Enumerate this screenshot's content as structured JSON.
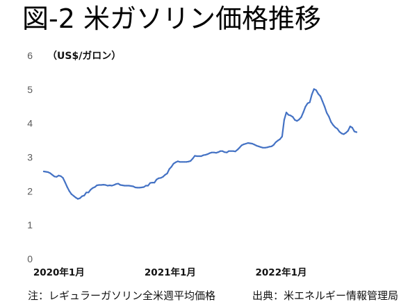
{
  "chart_data": {
    "type": "line",
    "title": "図-2 米ガソリン価格推移",
    "ylabel": "（US$/ガロン）",
    "ylim": [
      0,
      6
    ],
    "yticks": [
      0,
      1,
      2,
      3,
      4,
      5,
      6
    ],
    "xticks": [
      {
        "date": "2020-01",
        "label": "2020年1月"
      },
      {
        "date": "2021-01",
        "label": "2021年1月"
      },
      {
        "date": "2022-01",
        "label": "2022年1月"
      }
    ],
    "grid": false,
    "legend": "none",
    "x": [
      "2020-01-06",
      "2020-01-13",
      "2020-01-20",
      "2020-01-27",
      "2020-02-03",
      "2020-02-10",
      "2020-02-17",
      "2020-02-24",
      "2020-03-02",
      "2020-03-09",
      "2020-03-16",
      "2020-03-23",
      "2020-03-30",
      "2020-04-06",
      "2020-04-13",
      "2020-04-20",
      "2020-04-27",
      "2020-05-04",
      "2020-05-11",
      "2020-05-18",
      "2020-05-25",
      "2020-06-01",
      "2020-06-08",
      "2020-06-15",
      "2020-06-22",
      "2020-06-29",
      "2020-07-06",
      "2020-07-13",
      "2020-07-20",
      "2020-07-27",
      "2020-08-03",
      "2020-08-10",
      "2020-08-17",
      "2020-08-24",
      "2020-08-31",
      "2020-09-07",
      "2020-09-14",
      "2020-09-21",
      "2020-09-28",
      "2020-10-05",
      "2020-10-12",
      "2020-10-19",
      "2020-10-26",
      "2020-11-02",
      "2020-11-09",
      "2020-11-16",
      "2020-11-23",
      "2020-11-30",
      "2020-12-07",
      "2020-12-14",
      "2020-12-21",
      "2020-12-28",
      "2021-01-04",
      "2021-01-11",
      "2021-01-18",
      "2021-01-25",
      "2021-02-01",
      "2021-02-08",
      "2021-02-15",
      "2021-02-22",
      "2021-03-01",
      "2021-03-08",
      "2021-03-15",
      "2021-03-22",
      "2021-03-29",
      "2021-04-05",
      "2021-04-12",
      "2021-04-19",
      "2021-04-26",
      "2021-05-03",
      "2021-05-10",
      "2021-05-17",
      "2021-05-24",
      "2021-05-31",
      "2021-06-07",
      "2021-06-14",
      "2021-06-21",
      "2021-06-28",
      "2021-07-05",
      "2021-07-12",
      "2021-07-19",
      "2021-07-26",
      "2021-08-02",
      "2021-08-09",
      "2021-08-16",
      "2021-08-23",
      "2021-08-30",
      "2021-09-06",
      "2021-09-13",
      "2021-09-20",
      "2021-09-27",
      "2021-10-04",
      "2021-10-11",
      "2021-10-18",
      "2021-10-25",
      "2021-11-01",
      "2021-11-08",
      "2021-11-15",
      "2021-11-22",
      "2021-11-29",
      "2021-12-06",
      "2021-12-13",
      "2021-12-20",
      "2021-12-27",
      "2022-01-03",
      "2022-01-10",
      "2022-01-17",
      "2022-01-24",
      "2022-01-31",
      "2022-02-07",
      "2022-02-14",
      "2022-02-21",
      "2022-02-28",
      "2022-03-07",
      "2022-03-14",
      "2022-03-21",
      "2022-03-28",
      "2022-04-04",
      "2022-04-11",
      "2022-04-18",
      "2022-04-25",
      "2022-05-02",
      "2022-05-09",
      "2022-05-16",
      "2022-05-23",
      "2022-05-30",
      "2022-06-06",
      "2022-06-13",
      "2022-06-20",
      "2022-06-27",
      "2022-07-04",
      "2022-07-11",
      "2022-07-18",
      "2022-07-25",
      "2022-08-01",
      "2022-08-08",
      "2022-08-15",
      "2022-08-22",
      "2022-08-29",
      "2022-09-05",
      "2022-09-12",
      "2022-09-19",
      "2022-09-26",
      "2022-10-03",
      "2022-10-10",
      "2022-10-17",
      "2022-10-24",
      "2022-10-31"
    ],
    "series": [
      {
        "color": "#4472C4",
        "values": [
          2.58,
          2.57,
          2.56,
          2.53,
          2.48,
          2.43,
          2.42,
          2.46,
          2.44,
          2.39,
          2.26,
          2.12,
          2.0,
          1.91,
          1.86,
          1.81,
          1.77,
          1.79,
          1.85,
          1.87,
          1.96,
          1.96,
          2.04,
          2.09,
          2.12,
          2.17,
          2.18,
          2.18,
          2.19,
          2.18,
          2.16,
          2.17,
          2.16,
          2.18,
          2.21,
          2.22,
          2.18,
          2.17,
          2.16,
          2.16,
          2.16,
          2.15,
          2.14,
          2.11,
          2.1,
          2.1,
          2.11,
          2.12,
          2.16,
          2.16,
          2.24,
          2.25,
          2.25,
          2.34,
          2.38,
          2.39,
          2.42,
          2.48,
          2.52,
          2.65,
          2.72,
          2.81,
          2.85,
          2.88,
          2.86,
          2.86,
          2.86,
          2.86,
          2.87,
          2.89,
          2.96,
          3.04,
          3.03,
          3.03,
          3.03,
          3.06,
          3.07,
          3.09,
          3.12,
          3.14,
          3.14,
          3.13,
          3.15,
          3.18,
          3.18,
          3.15,
          3.14,
          3.18,
          3.18,
          3.18,
          3.17,
          3.22,
          3.28,
          3.35,
          3.38,
          3.4,
          3.42,
          3.41,
          3.4,
          3.37,
          3.34,
          3.32,
          3.3,
          3.28,
          3.28,
          3.29,
          3.31,
          3.32,
          3.36,
          3.44,
          3.49,
          3.53,
          3.61,
          4.1,
          4.32,
          4.25,
          4.23,
          4.19,
          4.1,
          4.07,
          4.11,
          4.18,
          4.33,
          4.49,
          4.59,
          4.62,
          4.85,
          5.01,
          4.98,
          4.87,
          4.8,
          4.65,
          4.49,
          4.31,
          4.2,
          4.04,
          3.95,
          3.88,
          3.84,
          3.75,
          3.7,
          3.68,
          3.72,
          3.78,
          3.91,
          3.87,
          3.76,
          3.74
        ]
      }
    ],
    "note": "注：レギュラーガソリン全米週平均価格",
    "source": "出典：米エネルギー情報管理局"
  }
}
